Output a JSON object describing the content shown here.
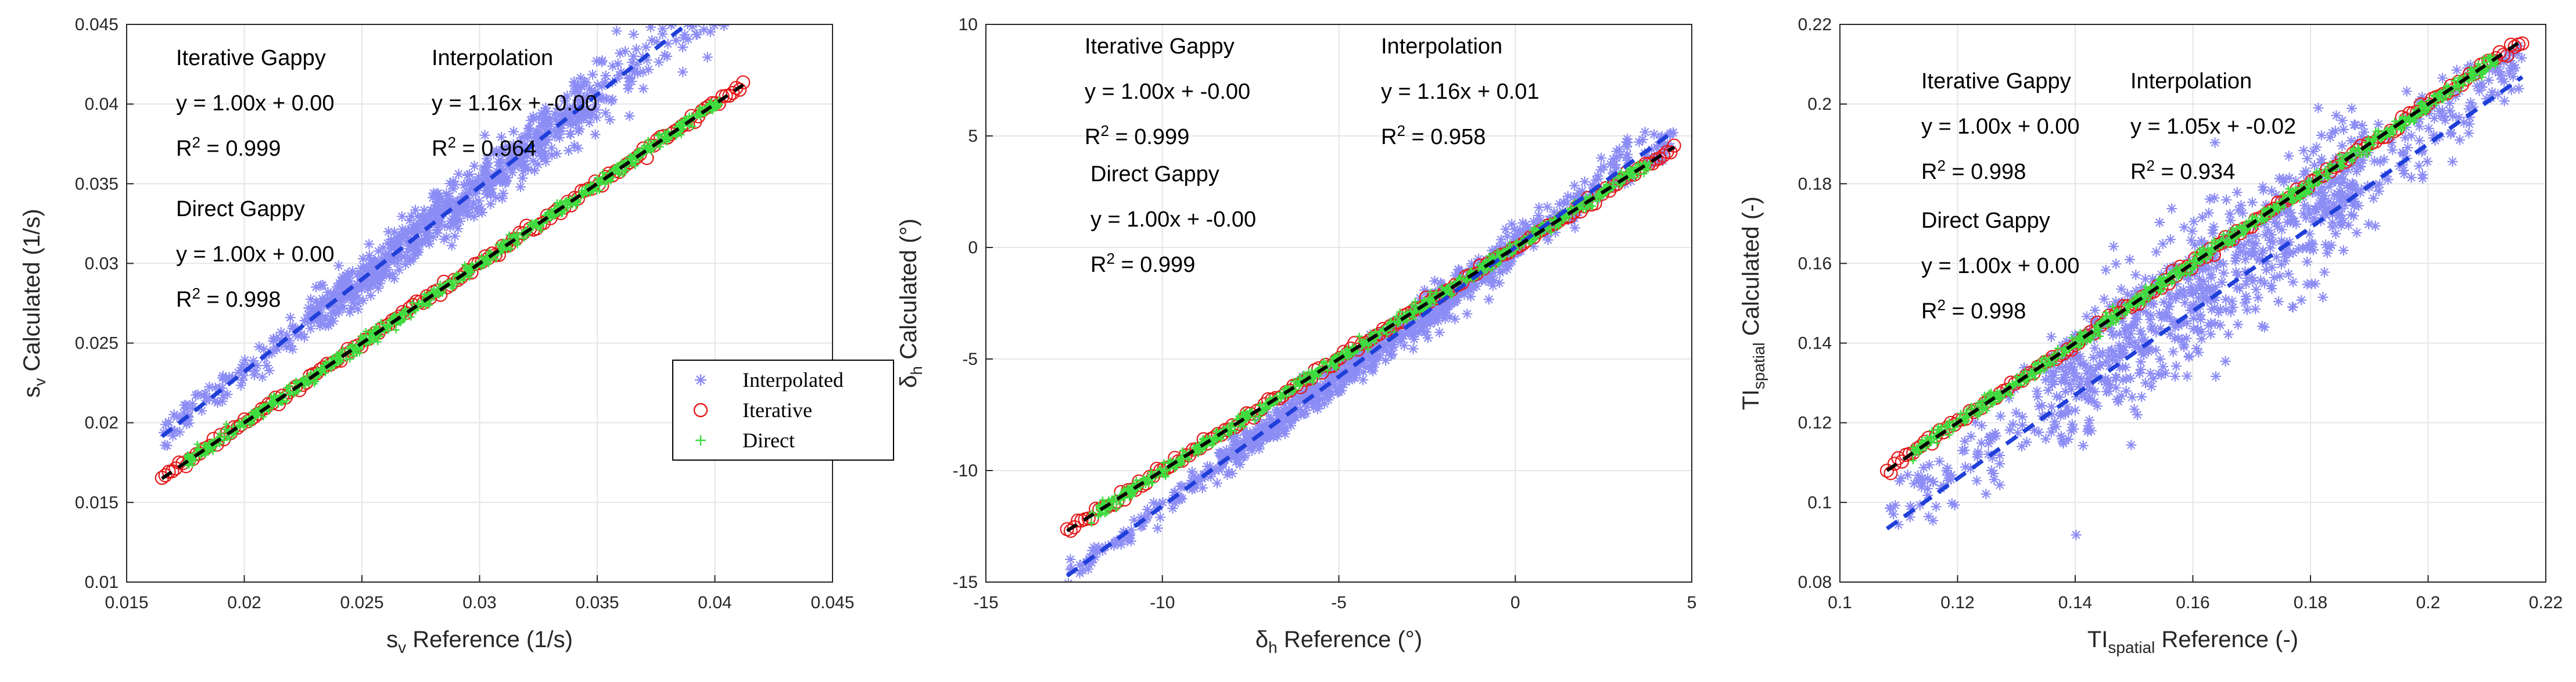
{
  "chart_data": [
    {
      "type": "scatter",
      "xlabel": {
        "base": "s",
        "sub": "v",
        "rest": " Reference (1/s)"
      },
      "ylabel": {
        "base": "s",
        "sub": "v",
        "rest": " Calculated (1/s)"
      },
      "xlim": [
        0.015,
        0.045
      ],
      "ylim": [
        0.01,
        0.045
      ],
      "xticks": [
        "0.015",
        "0.02",
        "0.025",
        "0.03",
        "0.035",
        "0.04",
        "0.045"
      ],
      "yticks": [
        "0.01",
        "0.015",
        "0.02",
        "0.025",
        "0.03",
        "0.035",
        "0.04",
        "0.045"
      ],
      "grid": true,
      "data_range": [
        0.0165,
        0.0412
      ],
      "fits": {
        "interpolated": {
          "slope": 1.16,
          "intercept": 0.0,
          "spread": 0.0009
        },
        "iterative": {
          "slope": 1.0,
          "intercept": 0.0
        },
        "direct": {
          "slope": 1.0,
          "intercept": 0.0
        }
      },
      "annotations": [
        {
          "title": "Iterative Gappy",
          "eq": "y = 1.00x + 0.00",
          "r2": "= 0.999"
        },
        {
          "title": "Interpolation",
          "eq": "y = 1.16x + -0.00",
          "r2": "= 0.964"
        },
        {
          "title": "Direct Gappy",
          "eq": "y = 1.00x + 0.00",
          "r2": "= 0.998"
        }
      ],
      "legend": {
        "show": true,
        "placement": "lower-right",
        "entries": [
          "Interpolated",
          "Iterative",
          "Direct"
        ]
      }
    },
    {
      "type": "scatter",
      "xlabel": {
        "base": "δ",
        "sub": "h",
        "rest": " Reference (°)"
      },
      "ylabel": {
        "base": "δ",
        "sub": "h",
        "rest": " Calculated (°)"
      },
      "xlim": [
        -15,
        5
      ],
      "ylim": [
        -15,
        10
      ],
      "xticks": [
        "-15",
        "-10",
        "-5",
        "0",
        "5"
      ],
      "yticks": [
        "-15",
        "-10",
        "-5",
        "0",
        "5",
        "10"
      ],
      "grid": true,
      "data_range": [
        -12.7,
        4.5
      ],
      "fits": {
        "interpolated": {
          "slope": 1.16,
          "intercept": 0.01,
          "spread": 0.45
        },
        "iterative": {
          "slope": 1.0,
          "intercept": 0.0
        },
        "direct": {
          "slope": 1.0,
          "intercept": 0.0
        }
      },
      "annotations": [
        {
          "title": "Iterative Gappy",
          "eq": "y = 1.00x + -0.00",
          "r2": "= 0.999"
        },
        {
          "title": "Interpolation",
          "eq": "y = 1.16x + 0.01",
          "r2": "= 0.958"
        },
        {
          "title": "Direct Gappy",
          "eq": "y = 1.00x + -0.00",
          "r2": "= 0.999"
        }
      ],
      "legend": {
        "show": false
      }
    },
    {
      "type": "scatter",
      "xlabel": {
        "base": "TI",
        "sub": "spatial",
        "rest": " Reference (-)"
      },
      "ylabel": {
        "base": "TI",
        "sub": "spatial",
        "rest": " Calculated (-)"
      },
      "xlim": [
        0.1,
        0.22
      ],
      "ylim": [
        0.08,
        0.22
      ],
      "xticks": [
        "0.1",
        "0.12",
        "0.14",
        "0.16",
        "0.18",
        "0.2",
        "0.22"
      ],
      "yticks": [
        "0.08",
        "0.1",
        "0.12",
        "0.14",
        "0.16",
        "0.18",
        "0.2",
        "0.22"
      ],
      "grid": true,
      "data_range": [
        0.108,
        0.216
      ],
      "fits": {
        "interpolated": {
          "slope": 1.05,
          "intercept": -0.02,
          "spread": 0.006
        },
        "iterative": {
          "slope": 1.0,
          "intercept": 0.0
        },
        "direct": {
          "slope": 1.0,
          "intercept": 0.0
        }
      },
      "annotations": [
        {
          "title": "Iterative Gappy",
          "eq": "y = 1.00x + 0.00",
          "r2": "= 0.998"
        },
        {
          "title": "Interpolation",
          "eq": "y = 1.05x + -0.02",
          "r2": "= 0.934"
        },
        {
          "title": "Direct Gappy",
          "eq": "y = 1.00x + 0.00",
          "r2": "= 0.998"
        }
      ],
      "legend": {
        "show": false
      }
    }
  ],
  "colors": {
    "interpolated": "#8c8cf5",
    "interp_line": "#1f3fd8",
    "iterative": "#e41a1a",
    "direct": "#3fdc3f",
    "fit_line": "#000000",
    "grid": "#e6e6e6",
    "axis": "#262626"
  },
  "labels": {
    "r2_base": "R",
    "r2_sup": "2"
  }
}
